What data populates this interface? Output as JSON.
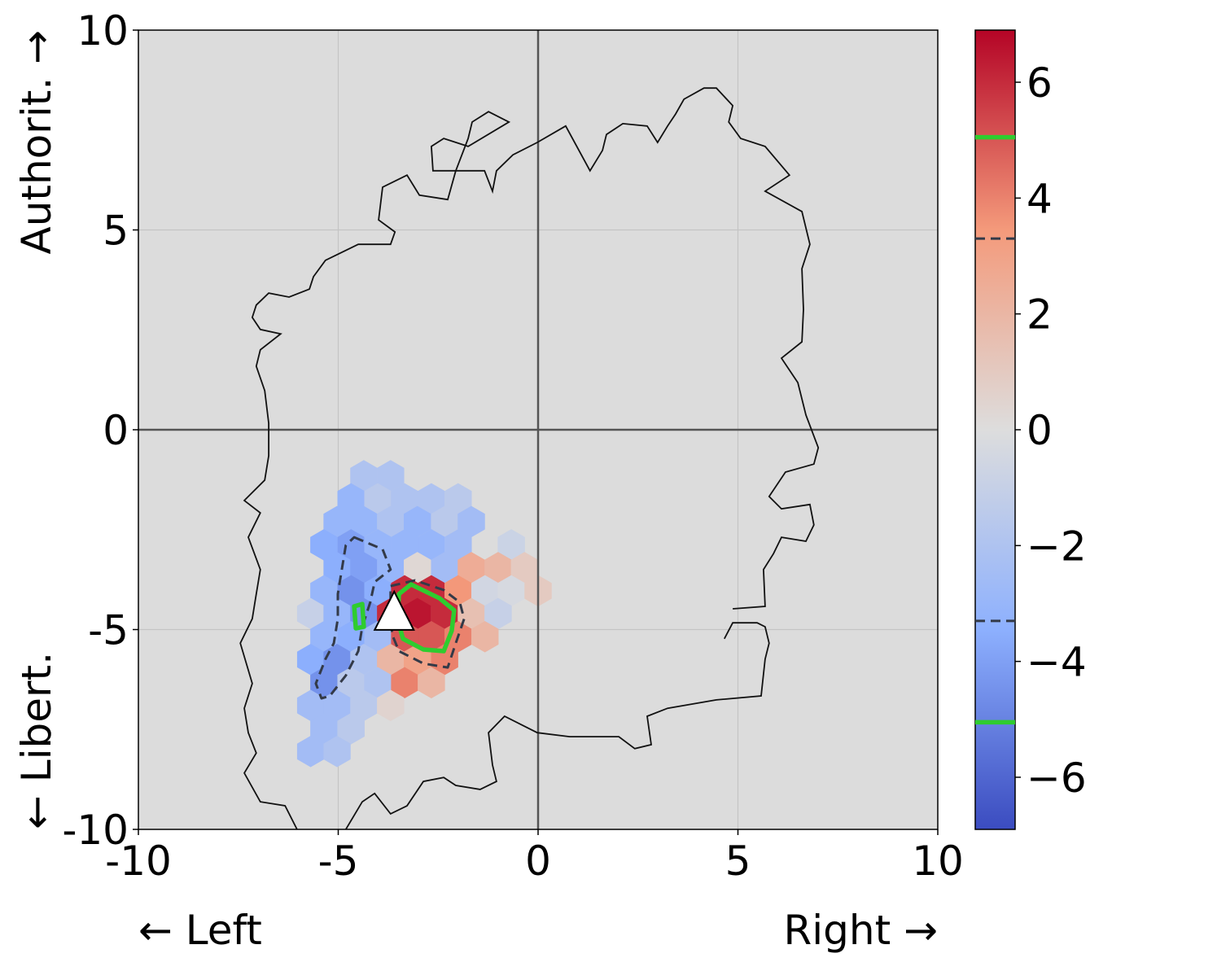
{
  "chart_data": {
    "type": "hexbin",
    "xlabel_left": "← Left",
    "xlabel_right": "Right →",
    "ylabel_top": "Authorit. →",
    "ylabel_bottom": "← Libert.",
    "xlim": [
      -10,
      10
    ],
    "ylim": [
      -10,
      10
    ],
    "xticks": [
      -10,
      -5,
      0,
      5,
      10
    ],
    "yticks": [
      -10,
      -5,
      0,
      5,
      10
    ],
    "grid": true,
    "background": "#dcdcdc",
    "colormap": [
      "#3b4cc0",
      "#8db0fe",
      "#dddddd",
      "#f49a7b",
      "#b40426"
    ],
    "colorbar": {
      "clim": [
        -6.9,
        6.9
      ],
      "ticks": [
        {
          "value": -6,
          "label": "−6"
        },
        {
          "value": -4,
          "label": "−4"
        },
        {
          "value": -2,
          "label": "−2"
        },
        0,
        2,
        4,
        6
      ]
    },
    "hexbins": {
      "x": [
        -4.36,
        -3.69,
        -4.68,
        -4.01,
        -3.34,
        -2.67,
        -2.0,
        -5.03,
        -4.36,
        -3.69,
        -3.02,
        -2.34,
        -1.67,
        -5.36,
        -4.68,
        -4.01,
        -3.34,
        -2.67,
        -2.0,
        -0.67,
        -5.03,
        -4.36,
        -3.69,
        -3.02,
        -2.34,
        -1.67,
        -1.0,
        -0.34,
        -5.36,
        -4.68,
        -4.01,
        -3.34,
        -2.67,
        -2.0,
        -1.33,
        -0.67,
        0.0,
        -5.69,
        -5.03,
        -4.36,
        -3.69,
        -3.02,
        -2.34,
        -1.67,
        -1.0,
        -5.36,
        -4.68,
        -4.01,
        -3.34,
        -2.67,
        -2.0,
        -1.33,
        -5.69,
        -5.03,
        -4.36,
        -3.69,
        -3.02,
        -2.34,
        -5.36,
        -4.68,
        -4.01,
        -3.34,
        -2.67,
        -5.69,
        -5.03,
        -4.36,
        -3.69,
        -5.36,
        -4.68,
        -5.69,
        -5.03
      ],
      "y": [
        -1.15,
        -1.15,
        -1.73,
        -1.73,
        -1.73,
        -1.73,
        -1.73,
        -2.3,
        -2.3,
        -2.3,
        -2.3,
        -2.3,
        -2.3,
        -2.88,
        -2.88,
        -2.88,
        -2.88,
        -2.88,
        -2.88,
        -2.88,
        -3.45,
        -3.45,
        -3.45,
        -3.45,
        -3.45,
        -3.45,
        -3.45,
        -3.45,
        -4.03,
        -4.03,
        -4.03,
        -4.03,
        -4.03,
        -4.03,
        -4.03,
        -4.03,
        -4.03,
        -4.6,
        -4.6,
        -4.6,
        -4.6,
        -4.6,
        -4.6,
        -4.6,
        -4.6,
        -5.18,
        -5.18,
        -5.18,
        -5.18,
        -5.18,
        -5.18,
        -5.18,
        -5.75,
        -5.75,
        -5.75,
        -5.75,
        -5.75,
        -5.75,
        -6.33,
        -6.33,
        -6.33,
        -6.33,
        -6.33,
        -6.9,
        -6.9,
        -6.9,
        -6.9,
        -7.48,
        -7.48,
        -8.05,
        -8.05
      ],
      "values": [
        -2,
        -2,
        -3,
        -1.5,
        -2,
        -2,
        -1.5,
        -3,
        -3,
        -2,
        -3,
        -1.5,
        -2.5,
        -3.5,
        -4,
        -3,
        -3,
        -3,
        -2.5,
        -0.8,
        -3.5,
        -4,
        -3,
        0.3,
        -2.5,
        2.5,
        2,
        1,
        -3,
        -4.5,
        -3.5,
        6,
        6,
        3.5,
        -0.5,
        -0.3,
        1,
        -1,
        -3,
        -4.5,
        6,
        6.5,
        6,
        1.5,
        -1,
        -3,
        -3.5,
        -2.5,
        5,
        5,
        4,
        2,
        -3.5,
        -4.5,
        -2,
        2,
        3,
        4,
        -4.5,
        -1.5,
        -2,
        4,
        2,
        -2.5,
        -2.5,
        -1.5,
        0.5,
        -2.5,
        -1.5,
        -2.5,
        -2
      ]
    },
    "outline": {
      "x": [
        4.87,
        5.68,
        5.64,
        5.89,
        6.09,
        6.7,
        6.9,
        6.8,
        6.09,
        5.78,
        6.19,
        6.9,
        7.01,
        6.7,
        6.5,
        6.09,
        6.6,
        6.64,
        6.6,
        6.8,
        6.6,
        5.68,
        6.29,
        5.68,
        5.07,
        4.77,
        4.87,
        4.46,
        4.15,
        3.65,
        3.44,
        3.24,
        2.99,
        2.73,
        2.12,
        1.71,
        1.61,
        1.3,
        0.69,
        -0.02,
        -0.63,
        -1.04,
        -1.14,
        -1.34,
        -2.06,
        -1.75,
        -1.65,
        -1.24,
        -0.73,
        -1.75,
        -2.36,
        -2.67,
        -2.63,
        -2.06,
        -2.26,
        -2.97,
        -3.28,
        -3.89,
        -3.99,
        -3.58,
        -3.69,
        -4.5,
        -5.32,
        -5.62,
        -5.72,
        -6.23,
        -6.74,
        -7.05,
        -7.15,
        -6.95,
        -6.44,
        -6.95,
        -7.05,
        -6.84,
        -6.74,
        -6.74,
        -6.84,
        -7.35,
        -6.95,
        -7.25,
        -6.95,
        -7.05,
        -7.15,
        -7.45,
        -7.15,
        -7.35,
        -7.25,
        -7.05,
        -7.35,
        -6.95,
        -6.33,
        -6.03,
        null,
        -4.81,
        -4.4,
        -4.09,
        -3.69,
        -3.28,
        -2.87,
        -2.36,
        -2.06,
        -1.45,
        -1.04,
        -1.14,
        -1.24,
        -0.84,
        -0.02,
        0.79,
        2.02,
        2.42,
        2.83,
        2.73,
        3.24,
        4.46,
        5.58,
        5.68,
        5.78,
        5.68,
        5.48,
        4.87,
        4.66
      ],
      "y": [
        -4.48,
        -4.42,
        -3.5,
        -3.1,
        -2.69,
        -2.79,
        -2.38,
        -1.87,
        -1.98,
        -1.67,
        -1.06,
        -0.86,
        -0.45,
        0.37,
        1.18,
        1.79,
        2.2,
        3.01,
        4.03,
        4.64,
        5.46,
        5.97,
        6.37,
        7.09,
        7.29,
        7.7,
        8.11,
        8.55,
        8.55,
        8.27,
        7.9,
        7.6,
        7.19,
        7.6,
        7.66,
        7.39,
        6.99,
        6.48,
        7.6,
        7.19,
        6.88,
        6.48,
        5.97,
        6.48,
        6.48,
        7.29,
        7.7,
        7.96,
        7.7,
        7.09,
        7.29,
        7.09,
        6.48,
        6.48,
        5.76,
        5.87,
        6.37,
        6.07,
        5.25,
        4.95,
        4.64,
        4.64,
        4.24,
        3.83,
        3.52,
        3.32,
        3.42,
        3.12,
        2.81,
        2.51,
        2.4,
        2.0,
        1.59,
        0.98,
        0.16,
        -0.65,
        -1.26,
        -1.77,
        -2.08,
        -2.69,
        -3.5,
        -4.11,
        -4.73,
        -5.34,
        -6.35,
        -6.97,
        -7.58,
        -8.09,
        -8.59,
        -9.31,
        -9.41,
        -10.0,
        null,
        -10.0,
        -9.31,
        -9.1,
        -9.61,
        -9.41,
        -8.8,
        -8.7,
        -8.9,
        -9.0,
        -8.8,
        -8.39,
        -7.58,
        -7.17,
        -7.58,
        -7.68,
        -7.68,
        -7.98,
        -7.88,
        -7.17,
        -6.97,
        -6.76,
        -6.66,
        -5.74,
        -5.34,
        -4.93,
        -4.83,
        -4.83,
        -5.23
      ]
    },
    "contours": [
      {
        "level": -3.3,
        "color": "#333a48",
        "dashed": true,
        "x": [
          -4.6,
          -3.89,
          -3.69,
          -4.09,
          -4.2,
          -4.4,
          -4.5,
          -4.81,
          -5.21,
          -5.42,
          -5.56,
          -5.32,
          -5.11,
          -5.01,
          -5.01,
          -4.91,
          -4.81
        ],
        "y": [
          -2.69,
          -2.99,
          -3.5,
          -3.81,
          -4.32,
          -4.93,
          -5.54,
          -6.15,
          -6.66,
          -6.72,
          -6.35,
          -5.74,
          -5.34,
          -4.73,
          -4.11,
          -3.5,
          -2.89
        ]
      },
      {
        "level": 3.3,
        "color": "#333a48",
        "dashed": true,
        "x": [
          -3.69,
          -3.08,
          -2.36,
          -1.96,
          -1.85,
          -2.06,
          -2.26,
          -2.87,
          -3.48,
          -3.65,
          -3.69
        ],
        "y": [
          -3.91,
          -3.77,
          -4.01,
          -4.32,
          -4.73,
          -5.34,
          -5.95,
          -5.85,
          -5.54,
          -5.13,
          -4.52
        ]
      },
      {
        "level": 5.05,
        "color": "#2fcc2f",
        "dashed": false,
        "x": [
          -3.48,
          -3.18,
          -2.46,
          -2.1,
          -2.16,
          -2.36,
          -2.87,
          -3.38,
          -3.52
        ],
        "y": [
          -4.11,
          -3.87,
          -4.22,
          -4.52,
          -5.03,
          -5.54,
          -5.5,
          -5.23,
          -4.73
        ]
      },
      {
        "level": -5.05,
        "color": "#2fcc2f",
        "dashed": false,
        "x": [
          -4.6,
          -4.4,
          -4.36,
          -4.56
        ],
        "y": [
          -4.42,
          -4.36,
          -4.93,
          -4.97
        ]
      }
    ],
    "marker": {
      "x": -3.6,
      "y": -4.6,
      "color": "#ffffff"
    }
  }
}
